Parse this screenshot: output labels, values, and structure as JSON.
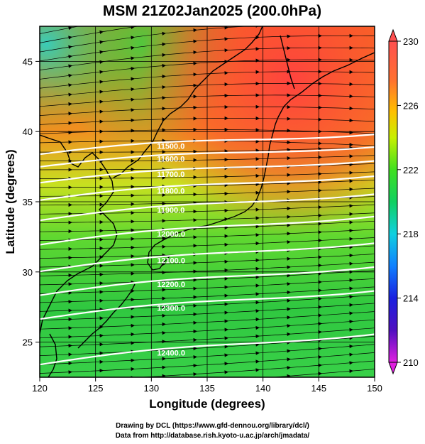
{
  "title": "MSM 21Z02Jan2025 (200.0hPa)",
  "xlabel": "Longitude (degrees)",
  "ylabel": "Latitude  (degrees)",
  "x_ticks": [
    "120",
    "125",
    "130",
    "135",
    "140",
    "145",
    "150"
  ],
  "y_ticks": [
    "25",
    "30",
    "35",
    "40",
    "45"
  ],
  "colorbar": {
    "min": 210,
    "max": 230,
    "ticks": [
      "210",
      "214",
      "218",
      "222",
      "226",
      "230"
    ]
  },
  "contour_labels": [
    "11500.0",
    "11600.0",
    "11700.0",
    "11800.0",
    "11900.0",
    "12000.0",
    "12100.0",
    "12200.0",
    "12300.0",
    "12400.0"
  ],
  "credit_line1": "Drawing by DCL (https://www.gfd-dennou.org/library/dcl/)",
  "credit_line2": "Data from http://database.rish.kyoto-u.ac.jp/arch/jmadata/",
  "chart_data": {
    "type": "map",
    "xlim": [
      120,
      150
    ],
    "ylim": [
      22.5,
      47.5
    ],
    "field": "temperature (K)",
    "color_range": [
      210,
      230
    ],
    "contours": [
      {
        "label": "11500.0",
        "lon0": 127.5,
        "lat0": 38.8,
        "slope": 0.055
      },
      {
        "label": "11600.0",
        "lon0": 127.5,
        "lat0": 37.9,
        "slope": 0.055
      },
      {
        "label": "11700.0",
        "lon0": 127.5,
        "lat0": 36.8,
        "slope": 0.06
      },
      {
        "label": "11800.0",
        "lon0": 127.5,
        "lat0": 35.6,
        "slope": 0.065
      },
      {
        "label": "11900.0",
        "lon0": 127.5,
        "lat0": 34.2,
        "slope": 0.07
      },
      {
        "label": "12000.0",
        "lon0": 127.5,
        "lat0": 32.5,
        "slope": 0.075
      },
      {
        "label": "12100.0",
        "lon0": 127.5,
        "lat0": 30.6,
        "slope": 0.075
      },
      {
        "label": "12200.0",
        "lon0": 127.5,
        "lat0": 28.9,
        "slope": 0.075
      },
      {
        "label": "12300.0",
        "lon0": 127.5,
        "lat0": 27.2,
        "slope": 0.075
      },
      {
        "label": "12400.0",
        "lon0": 127.5,
        "lat0": 24.0,
        "slope": 0.08
      }
    ]
  }
}
